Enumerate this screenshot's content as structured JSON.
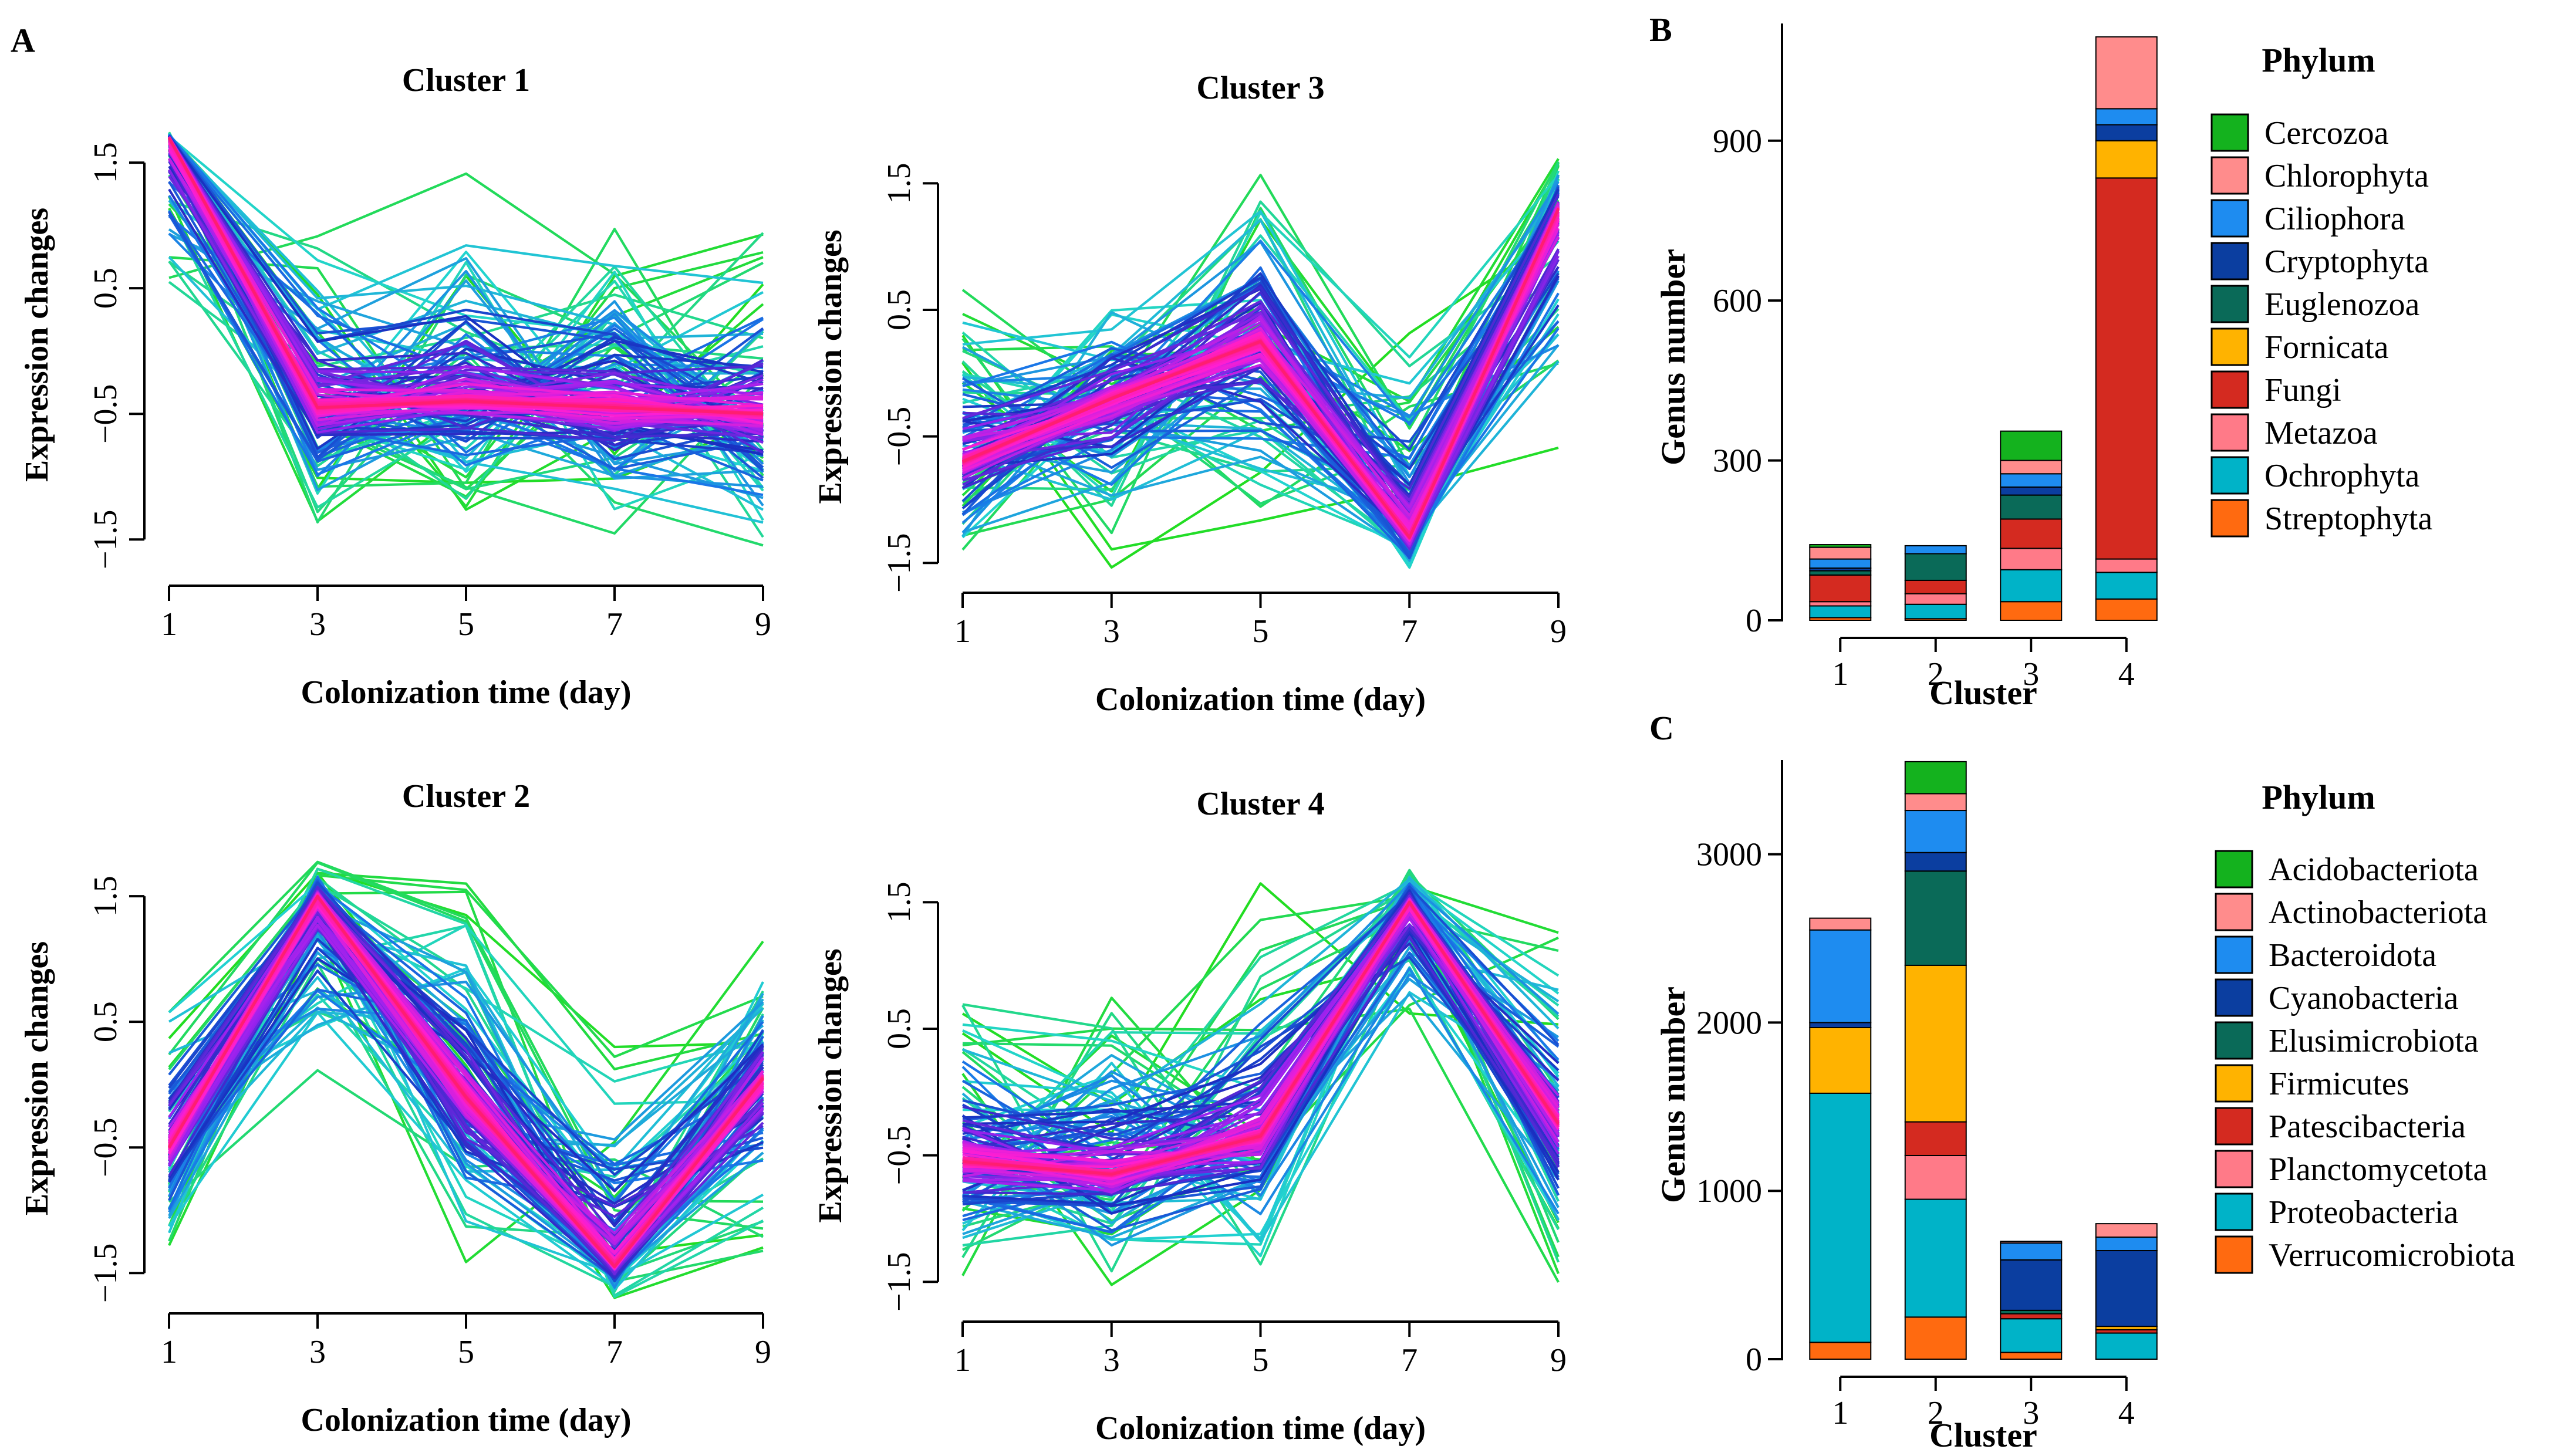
{
  "panels": {
    "A": "A",
    "B": "B",
    "C": "C"
  },
  "chart_data": [
    {
      "type": "line",
      "panel": "A",
      "title": "Cluster 1",
      "xlabel": "Colonization time  (day)",
      "ylabel": "Expression changes",
      "x": [
        1,
        3,
        5,
        7,
        9
      ],
      "x_ticks": [
        "1",
        "3",
        "5",
        "7",
        "9"
      ],
      "y_ticks": [
        "1.5",
        "0.5",
        "−0.5",
        "−1.5"
      ],
      "ylim": [
        -1.55,
        1.65
      ],
      "base_pattern": [
        1.7,
        -0.45,
        -0.4,
        -0.45,
        -0.5
      ],
      "envelope_high": [
        1.75,
        1.1,
        1.6,
        1.15,
        1.2
      ],
      "envelope_low": [
        0.3,
        -1.55,
        -1.4,
        -1.65,
        -1.75
      ],
      "color_gradient": [
        "#22dd22",
        "#22d4d0",
        "#1a78e8",
        "#1a2ec0",
        "#9a22ee",
        "#ff1ed2",
        "#ff1e70"
      ]
    },
    {
      "type": "line",
      "panel": "A",
      "title": "Cluster 3",
      "xlabel": "Colonization time  (day)",
      "ylabel": "Expression changes",
      "x": [
        1,
        3,
        5,
        7,
        9
      ],
      "x_ticks": [
        "1",
        "3",
        "5",
        "7",
        "9"
      ],
      "y_ticks": [
        "1.5",
        "0.5",
        "−0.5",
        "−1.5"
      ],
      "ylim": [
        -1.55,
        1.65
      ],
      "base_pattern": [
        -0.7,
        -0.2,
        0.25,
        -1.3,
        1.3
      ],
      "envelope_high": [
        0.85,
        0.85,
        1.8,
        0.55,
        1.75
      ],
      "envelope_low": [
        -1.7,
        -1.55,
        -1.3,
        -1.7,
        -0.8
      ],
      "color_gradient": [
        "#22dd22",
        "#22d4d0",
        "#1a78e8",
        "#1a2ec0",
        "#9a22ee",
        "#ff1ed2",
        "#ff1e70"
      ]
    },
    {
      "type": "line",
      "panel": "A",
      "title": "Cluster 2",
      "xlabel": "Colonization time  (day)",
      "ylabel": "Expression changes",
      "x": [
        1,
        3,
        5,
        7,
        9
      ],
      "x_ticks": [
        "1",
        "3",
        "5",
        "7",
        "9"
      ],
      "y_ticks": [
        "1.5",
        "0.5",
        "−0.5",
        "−1.5"
      ],
      "ylim": [
        -1.55,
        1.65
      ],
      "base_pattern": [
        -0.5,
        1.5,
        -0.1,
        -1.45,
        0.05
      ],
      "envelope_high": [
        1.0,
        1.8,
        1.7,
        0.5,
        1.25
      ],
      "envelope_low": [
        -1.5,
        -0.1,
        -1.5,
        -1.75,
        -1.5
      ],
      "color_gradient": [
        "#22dd22",
        "#22d4d0",
        "#1a78e8",
        "#1a2ec0",
        "#9a22ee",
        "#ff1ed2",
        "#ff1e70"
      ]
    },
    {
      "type": "line",
      "panel": "A",
      "title": "Cluster 4",
      "xlabel": "Colonization time  (day)",
      "ylabel": "Expression changes",
      "x": [
        1,
        3,
        5,
        7,
        9
      ],
      "x_ticks": [
        "1",
        "3",
        "5",
        "7",
        "9"
      ],
      "y_ticks": [
        "1.5",
        "0.5",
        "−0.5",
        "−1.5"
      ],
      "ylim": [
        -1.55,
        1.65
      ],
      "base_pattern": [
        -0.55,
        -0.65,
        -0.35,
        1.5,
        -0.25
      ],
      "envelope_high": [
        1.0,
        0.95,
        1.65,
        1.8,
        1.35
      ],
      "envelope_low": [
        -1.55,
        -1.7,
        -1.6,
        0.35,
        -1.6
      ],
      "color_gradient": [
        "#22dd22",
        "#22d4d0",
        "#1a78e8",
        "#1a2ec0",
        "#9a22ee",
        "#ff1ed2",
        "#ff1e70"
      ]
    },
    {
      "type": "bar",
      "stacked": true,
      "panel": "B",
      "xlabel": "Cluster",
      "ylabel": "Genus number",
      "categories": [
        "1",
        "2",
        "3",
        "4"
      ],
      "y_ticks": [
        0,
        300,
        600,
        900
      ],
      "ylim": [
        0,
        1120
      ],
      "legend_title": "Phylum",
      "legend_position": "right",
      "series": [
        {
          "name": "Streptophyta",
          "color": "#ff6a10",
          "values": [
            5,
            3,
            35,
            40
          ]
        },
        {
          "name": "Ochrophyta",
          "color": "#00b3c8",
          "values": [
            22,
            27,
            60,
            50
          ]
        },
        {
          "name": "Metazoa",
          "color": "#ff7a88",
          "values": [
            8,
            20,
            40,
            25
          ]
        },
        {
          "name": "Fungi",
          "color": "#d42a20",
          "values": [
            50,
            25,
            55,
            715
          ]
        },
        {
          "name": "Fornicata",
          "color": "#ffb300",
          "values": [
            0,
            0,
            0,
            70
          ]
        },
        {
          "name": "Euglenozoa",
          "color": "#0a6a58",
          "values": [
            8,
            50,
            45,
            0
          ]
        },
        {
          "name": "Cryptophyta",
          "color": "#0b3ea0",
          "values": [
            5,
            0,
            15,
            30
          ]
        },
        {
          "name": "Ciliophora",
          "color": "#1e8cf0",
          "values": [
            17,
            15,
            25,
            30
          ]
        },
        {
          "name": "Chlorophyta",
          "color": "#ff8c8c",
          "values": [
            22,
            0,
            25,
            135
          ]
        },
        {
          "name": "Cercozoa",
          "color": "#14b21e",
          "values": [
            5,
            0,
            55,
            0
          ]
        }
      ]
    },
    {
      "type": "bar",
      "stacked": true,
      "panel": "C",
      "xlabel": "Cluster",
      "ylabel": "Genus number",
      "categories": [
        "1",
        "2",
        "3",
        "4"
      ],
      "y_ticks": [
        0,
        1000,
        2000,
        3000
      ],
      "ylim": [
        0,
        3560
      ],
      "legend_title": "Phylum",
      "legend_position": "right",
      "series": [
        {
          "name": "Verrucomicrobiota",
          "color": "#ff6a10",
          "values": [
            100,
            250,
            40,
            0
          ]
        },
        {
          "name": "Proteobacteria",
          "color": "#00b3c8",
          "values": [
            1480,
            700,
            200,
            155
          ]
        },
        {
          "name": "Planctomycetota",
          "color": "#ff7a88",
          "values": [
            0,
            260,
            0,
            0
          ]
        },
        {
          "name": "Patescibacteria",
          "color": "#d42a20",
          "values": [
            0,
            200,
            30,
            20
          ]
        },
        {
          "name": "Firmicutes",
          "color": "#ffb300",
          "values": [
            390,
            930,
            0,
            20
          ]
        },
        {
          "name": "Elusimicrobiota",
          "color": "#0a6a58",
          "values": [
            0,
            560,
            20,
            0
          ]
        },
        {
          "name": "Cyanobacteria",
          "color": "#0b3ea0",
          "values": [
            30,
            110,
            300,
            450
          ]
        },
        {
          "name": "Bacteroidota",
          "color": "#1e8cf0",
          "values": [
            550,
            250,
            100,
            80
          ]
        },
        {
          "name": "Actinobacteriota",
          "color": "#ff8c8c",
          "values": [
            70,
            100,
            10,
            80
          ]
        },
        {
          "name": "Acidobacteriota",
          "color": "#14b21e",
          "values": [
            0,
            190,
            0,
            0
          ]
        }
      ]
    }
  ]
}
